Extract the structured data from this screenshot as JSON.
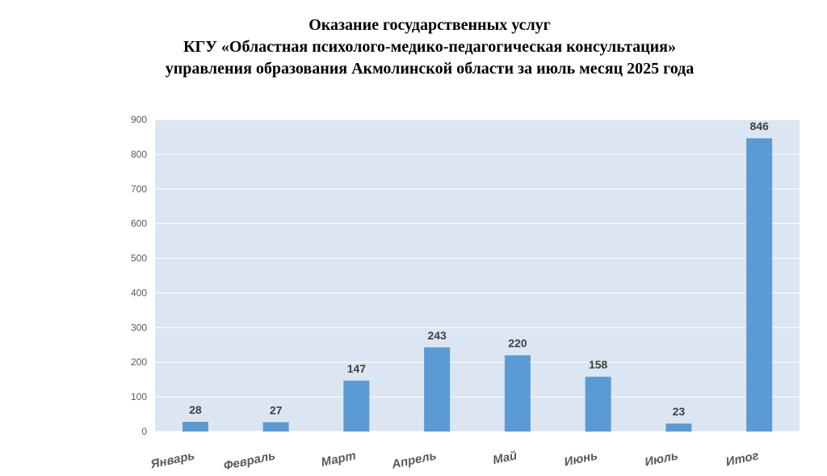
{
  "chart_data": {
    "type": "bar",
    "title_lines": [
      "Оказание государственных услуг",
      "КГУ «Областная психолого-медико-педагогическая консультация»",
      "управления образования Акмолинской области за июль месяц 2025 года"
    ],
    "categories": [
      "Январь",
      "Февраль",
      "Март",
      "Апрель",
      "Май",
      "Июнь",
      "Июль",
      "Итог"
    ],
    "values": [
      28,
      27,
      147,
      243,
      220,
      158,
      23,
      846
    ],
    "yticks": [
      0,
      100,
      200,
      300,
      400,
      500,
      600,
      700,
      800,
      900
    ],
    "ylim": [
      0,
      900
    ],
    "xlabel": "",
    "ylabel": "",
    "grid": true,
    "legend": "none",
    "colors": {
      "bar": "#5b9bd5",
      "plot_bg": "#dce6f2",
      "grid": "#ffffff"
    }
  }
}
